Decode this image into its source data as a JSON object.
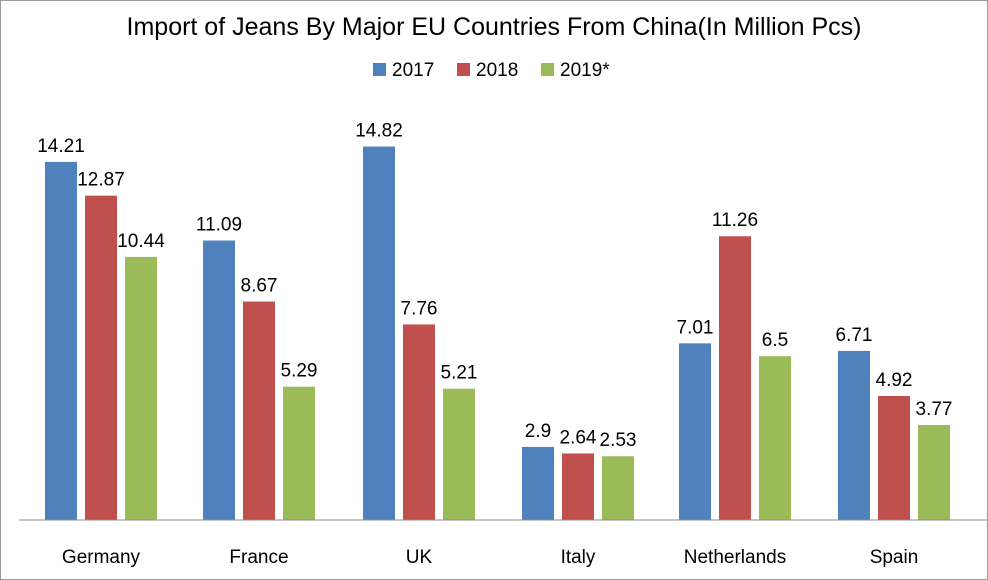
{
  "chart_data": {
    "type": "bar",
    "title": "Import of Jeans By Major EU Countries From China(In Million Pcs)",
    "xlabel": "",
    "ylabel": "",
    "categories": [
      "Germany",
      "France",
      "UK",
      "Italy",
      "Netherlands",
      "Spain"
    ],
    "series": [
      {
        "name": "2017",
        "color": "#4F81BD",
        "values": [
          14.21,
          11.09,
          14.82,
          2.9,
          7.01,
          6.71
        ],
        "labels": [
          "14.21",
          "11.09",
          "14.82",
          "2.9",
          "7.01",
          "6.71"
        ]
      },
      {
        "name": "2018",
        "color": "#C0504D",
        "values": [
          12.87,
          8.67,
          7.76,
          2.64,
          11.26,
          4.92
        ],
        "labels": [
          "12.87",
          "8.67",
          "7.76",
          "2.64",
          "11.26",
          "4.92"
        ]
      },
      {
        "name": "2019*",
        "color": "#9BBB59",
        "values": [
          10.44,
          5.29,
          5.21,
          2.53,
          6.5,
          3.77
        ],
        "labels": [
          "10.44",
          "5.29",
          "5.21",
          "2.53",
          "6.5",
          "3.77"
        ]
      }
    ],
    "ylim": [
      0,
      16
    ],
    "grid": false,
    "legend_position": "top"
  }
}
